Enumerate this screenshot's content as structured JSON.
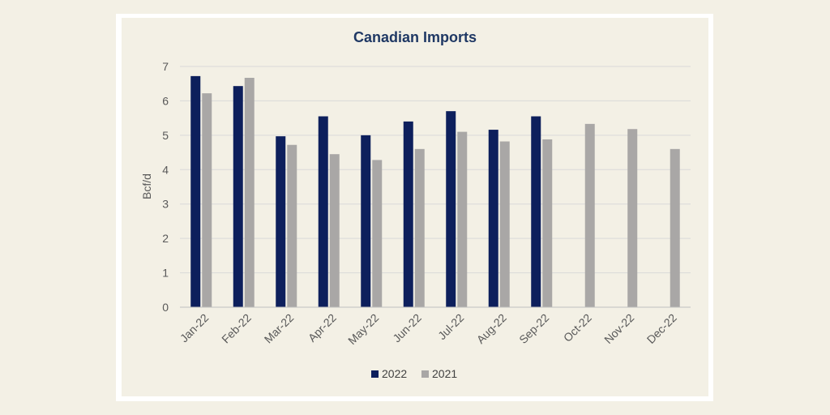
{
  "chart_data": {
    "type": "bar",
    "title": "Canadian Imports",
    "xlabel": "",
    "ylabel": "Bcf/d",
    "ylim": [
      0,
      7
    ],
    "yticks": [
      0,
      1,
      2,
      3,
      4,
      5,
      6,
      7
    ],
    "categories": [
      "Jan-22",
      "Feb-22",
      "Mar-22",
      "Apr-22",
      "May-22",
      "Jun-22",
      "Jul-22",
      "Aug-22",
      "Sep-22",
      "Oct-22",
      "Nov-22",
      "Dec-22"
    ],
    "series": [
      {
        "name": "2022",
        "color": "#0d1f5c",
        "values": [
          6.72,
          6.43,
          4.97,
          5.55,
          5.0,
          5.4,
          5.7,
          5.16,
          5.55,
          null,
          null,
          null
        ]
      },
      {
        "name": "2021",
        "color": "#a9a7a6",
        "values": [
          6.22,
          6.67,
          4.72,
          4.45,
          4.28,
          4.6,
          5.1,
          4.82,
          4.88,
          5.33,
          5.18,
          4.6
        ]
      }
    ],
    "grid": true,
    "legend_position": "bottom"
  },
  "colors": {
    "background": "#f3f0e5",
    "frame": "#ffffff",
    "grid": "#d9d9d9",
    "title": "#1f3864"
  }
}
